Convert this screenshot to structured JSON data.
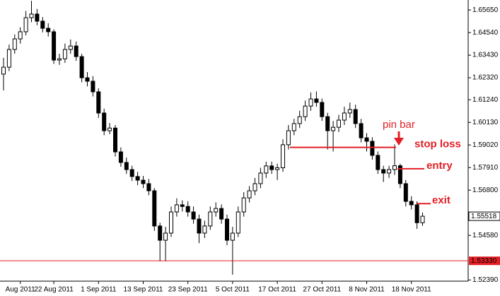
{
  "chart_data": {
    "type": "candlestick",
    "categories": [
      null,
      null,
      null,
      "Aug 2011",
      null,
      null,
      null,
      null,
      null,
      "22 Aug 2011",
      null,
      null,
      null,
      null,
      null,
      null,
      null,
      "1 Sep 2011",
      null,
      null,
      null,
      null,
      null,
      null,
      null,
      "13 Sep 2011",
      null,
      null,
      null,
      null,
      null,
      null,
      null,
      "23 Sep 2011",
      null,
      null,
      null,
      null,
      null,
      null,
      null,
      "5 Oct 2011",
      null,
      null,
      null,
      null,
      null,
      null,
      null,
      "17 Oct 2011",
      null,
      null,
      null,
      null,
      null,
      null,
      null,
      "27 Oct 2011",
      null,
      null,
      null,
      null,
      null,
      null,
      null,
      "8 Nov 2011",
      null,
      null,
      null,
      null,
      null,
      null,
      null,
      "18 Nov 2011",
      null,
      null
    ],
    "ohlc": [
      [
        1.625,
        1.633,
        1.617,
        1.6284
      ],
      [
        1.6284,
        1.6395,
        1.6265,
        1.6371
      ],
      [
        1.6371,
        1.6445,
        1.635,
        1.6423
      ],
      [
        1.6423,
        1.648,
        1.64,
        1.6458
      ],
      [
        1.6458,
        1.656,
        1.644,
        1.6527
      ],
      [
        1.6527,
        1.661,
        1.6505,
        1.6545
      ],
      [
        1.6545,
        1.657,
        1.649,
        1.651
      ],
      [
        1.651,
        1.653,
        1.6455,
        1.6475
      ],
      [
        1.6475,
        1.65,
        1.6435,
        1.6458
      ],
      [
        1.6458,
        1.647,
        1.63,
        1.6319
      ],
      [
        1.6319,
        1.635,
        1.6295,
        1.6325
      ],
      [
        1.6325,
        1.64,
        1.6305,
        1.6371
      ],
      [
        1.6371,
        1.642,
        1.635,
        1.6388
      ],
      [
        1.6388,
        1.641,
        1.6315,
        1.6336
      ],
      [
        1.6336,
        1.635,
        1.621,
        1.6232
      ],
      [
        1.6232,
        1.626,
        1.619,
        1.6215
      ],
      [
        1.6215,
        1.624,
        1.614,
        1.6163
      ],
      [
        1.6163,
        1.618,
        1.6035,
        1.6059
      ],
      [
        1.6059,
        1.608,
        1.595,
        1.5972
      ],
      [
        1.5972,
        1.601,
        1.5955,
        1.5985
      ],
      [
        1.5985,
        1.6,
        1.5845,
        1.5868
      ],
      [
        1.5868,
        1.589,
        1.5795,
        1.5816
      ],
      [
        1.5816,
        1.584,
        1.576,
        1.5781
      ],
      [
        1.5781,
        1.58,
        1.5725,
        1.5747
      ],
      [
        1.5747,
        1.577,
        1.5705,
        1.5729
      ],
      [
        1.5729,
        1.575,
        1.569,
        1.5712
      ],
      [
        1.5712,
        1.5735,
        1.5655,
        1.5677
      ],
      [
        1.5677,
        1.569,
        1.548,
        1.5504
      ],
      [
        1.5504,
        1.552,
        1.533,
        1.5434
      ],
      [
        1.5434,
        1.55,
        1.533,
        1.5469
      ],
      [
        1.5469,
        1.56,
        1.545,
        1.5573
      ],
      [
        1.5573,
        1.564,
        1.555,
        1.5608
      ],
      [
        1.5608,
        1.563,
        1.5575,
        1.56
      ],
      [
        1.56,
        1.5625,
        1.555,
        1.5573
      ],
      [
        1.5573,
        1.56,
        1.5515,
        1.5538
      ],
      [
        1.5538,
        1.556,
        1.542,
        1.5469
      ],
      [
        1.5469,
        1.553,
        1.5445,
        1.5504
      ],
      [
        1.5504,
        1.56,
        1.5485,
        1.5573
      ],
      [
        1.5573,
        1.562,
        1.555,
        1.559
      ],
      [
        1.559,
        1.561,
        1.5515,
        1.5538
      ],
      [
        1.5538,
        1.556,
        1.541,
        1.5434
      ],
      [
        1.5434,
        1.55,
        1.5265,
        1.5469
      ],
      [
        1.5469,
        1.56,
        1.545,
        1.5573
      ],
      [
        1.5573,
        1.567,
        1.555,
        1.5642
      ],
      [
        1.5642,
        1.57,
        1.562,
        1.5677
      ],
      [
        1.5677,
        1.574,
        1.5655,
        1.5712
      ],
      [
        1.5712,
        1.579,
        1.569,
        1.5764
      ],
      [
        1.5764,
        1.582,
        1.574,
        1.5799
      ],
      [
        1.5799,
        1.582,
        1.576,
        1.5781
      ],
      [
        1.5781,
        1.581,
        1.573,
        1.579
      ],
      [
        1.579,
        1.593,
        1.577,
        1.5903
      ],
      [
        1.5903,
        1.6,
        1.588,
        1.5972
      ],
      [
        1.5972,
        1.603,
        1.595,
        1.6007
      ],
      [
        1.6007,
        1.607,
        1.5985,
        1.6041
      ],
      [
        1.6041,
        1.612,
        1.602,
        1.6093
      ],
      [
        1.6093,
        1.616,
        1.607,
        1.6128
      ],
      [
        1.6128,
        1.6165,
        1.609,
        1.6111
      ],
      [
        1.6111,
        1.613,
        1.602,
        1.6041
      ],
      [
        1.6041,
        1.606,
        1.588,
        1.5972
      ],
      [
        1.5972,
        1.602,
        1.587,
        1.5989
      ],
      [
        1.5989,
        1.605,
        1.5965,
        1.6024
      ],
      [
        1.6024,
        1.609,
        1.6,
        1.6059
      ],
      [
        1.6059,
        1.611,
        1.6035,
        1.6076
      ],
      [
        1.6076,
        1.61,
        1.5985,
        1.6007
      ],
      [
        1.6007,
        1.603,
        1.5915,
        1.5937
      ],
      [
        1.5937,
        1.596,
        1.587,
        1.592
      ],
      [
        1.592,
        1.594,
        1.583,
        1.5851
      ],
      [
        1.5851,
        1.587,
        1.576,
        1.5781
      ],
      [
        1.5781,
        1.58,
        1.572,
        1.5764
      ],
      [
        1.5764,
        1.58,
        1.574,
        1.5781
      ],
      [
        1.5781,
        1.5905,
        1.5755,
        1.58
      ],
      [
        1.58,
        1.581,
        1.569,
        1.5712
      ],
      [
        1.5712,
        1.573,
        1.56,
        1.5625
      ],
      [
        1.5625,
        1.565,
        1.5585,
        1.5608
      ],
      [
        1.5608,
        1.5625,
        1.549,
        1.552
      ],
      [
        1.552,
        1.557,
        1.5505,
        1.5552
      ]
    ],
    "up_color": "#ffffff",
    "down_color": "#000000",
    "ylim": [
      1.5233,
      1.6614
    ],
    "yticks": [
      {
        "value": 1.5239,
        "label": "1.52390"
      },
      {
        "value": 1.5458,
        "label": "1.54580"
      },
      {
        "value": 1.568,
        "label": "1.56800"
      },
      {
        "value": 1.5791,
        "label": "1.57910"
      },
      {
        "value": 1.5902,
        "label": "1.59020"
      },
      {
        "value": 1.6013,
        "label": "1.60130"
      },
      {
        "value": 1.6124,
        "label": "1.61240"
      },
      {
        "value": 1.6232,
        "label": "1.62320"
      },
      {
        "value": 1.6343,
        "label": "1.63430"
      },
      {
        "value": 1.6454,
        "label": "1.64540"
      },
      {
        "value": 1.6565,
        "label": "1.65650"
      }
    ],
    "current_price": {
      "value": 1.55518,
      "label": "1.55518"
    },
    "price_line": {
      "value": 1.5333,
      "label": "1.53330",
      "color": "#e31e24"
    },
    "annotations": [
      {
        "text": "stop loss",
        "value": 1.589,
        "color": "#e31e24"
      },
      {
        "text": "entry",
        "value": 1.5785,
        "color": "#e31e24"
      },
      {
        "text": "exit",
        "value": 1.5614,
        "color": "#e31e24"
      }
    ],
    "pin_label": {
      "text": "pin bar",
      "color": "#e31e24"
    }
  }
}
